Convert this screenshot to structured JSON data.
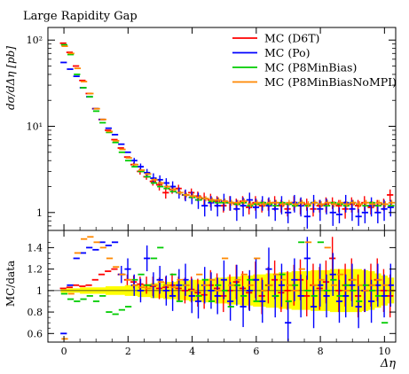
{
  "chart_data": [
    {
      "type": "scatter",
      "title": "Large Rapidity Gap",
      "ylabel": "dσ/dΔη [pb]",
      "yscale": "log",
      "ylim": [
        0.62,
        140
      ],
      "xlim": [
        -0.5,
        10.35
      ],
      "yticks": [
        {
          "value": 1,
          "label": "1"
        },
        {
          "value": 10,
          "label": "10¹"
        },
        {
          "value": 100,
          "label": "10²"
        }
      ],
      "legend_position": "top-right",
      "x_bins": [
        0.0,
        0.2,
        0.4,
        0.6,
        0.8,
        1.0,
        1.2,
        1.4,
        1.6,
        1.8,
        2.0,
        2.2,
        2.4,
        2.6,
        2.8,
        3.0,
        3.2,
        3.4,
        3.6,
        3.8,
        4.0,
        4.2,
        4.4,
        4.6,
        4.8,
        5.0,
        5.2,
        5.4,
        5.6,
        5.8,
        6.0,
        6.2,
        6.4,
        6.6,
        6.8,
        7.0,
        7.2,
        7.4,
        7.6,
        7.8,
        8.0,
        8.2,
        8.4,
        8.6,
        8.8,
        9.0,
        9.2,
        9.4,
        9.6,
        9.8,
        10.0,
        10.2
      ],
      "series": [
        {
          "name": "MC (D6T)",
          "color": "#ff0000",
          "values": [
            92,
            72,
            50,
            34,
            24,
            16,
            12,
            9,
            7,
            5.6,
            4.4,
            3.6,
            3.0,
            2.6,
            2.3,
            2.1,
            1.7,
            1.85,
            1.9,
            1.6,
            1.7,
            1.55,
            1.45,
            1.4,
            1.35,
            1.2,
            1.3,
            1.25,
            1.35,
            1.15,
            1.3,
            1.2,
            1.25,
            1.3,
            1.2,
            1.1,
            1.3,
            1.2,
            1.25,
            1.1,
            1.2,
            1.25,
            1.3,
            1.2,
            1.1,
            1.25,
            1.2,
            1.3,
            1.15,
            1.2,
            1.25,
            1.6
          ],
          "err": [
            0,
            0,
            0,
            0,
            0,
            0,
            0,
            0,
            0,
            0,
            0,
            0.2,
            0.25,
            0.2,
            0.25,
            0.3,
            0.25,
            0.2,
            0.2,
            0.2,
            0.2,
            0.2,
            0.25,
            0.25,
            0.2,
            0.2,
            0.25,
            0.2,
            0.2,
            0.2,
            0.25,
            0.2,
            0.2,
            0.25,
            0.2,
            0.2,
            0.25,
            0.25,
            0.2,
            0.2,
            0.2,
            0.25,
            0.2,
            0.2,
            0.25,
            0.25,
            0.2,
            0.25,
            0.2,
            0.2,
            0.2,
            0.25
          ]
        },
        {
          "name": "MC (Po)",
          "color": "#0000ff",
          "values": [
            55,
            46,
            38,
            28,
            22,
            16,
            12,
            9.5,
            8.0,
            6.2,
            5.0,
            4.0,
            3.4,
            2.9,
            2.5,
            2.4,
            2.2,
            2.0,
            1.7,
            1.6,
            1.5,
            1.4,
            1.2,
            1.3,
            1.2,
            1.35,
            1.3,
            1.1,
            1.2,
            1.4,
            1.15,
            1.3,
            1.2,
            1.1,
            1.25,
            1.0,
            1.3,
            1.2,
            0.9,
            1.3,
            1.1,
            1.2,
            1.0,
            0.95,
            1.3,
            1.1,
            0.9,
            1.0,
            1.2,
            1.0,
            1.1,
            1.15
          ],
          "err": [
            0,
            0,
            0,
            0,
            0,
            0,
            0,
            0,
            0,
            0,
            0,
            0.3,
            0.3,
            0.3,
            0.35,
            0.3,
            0.3,
            0.3,
            0.25,
            0.25,
            0.25,
            0.3,
            0.3,
            0.25,
            0.3,
            0.3,
            0.25,
            0.3,
            0.3,
            0.3,
            0.3,
            0.25,
            0.3,
            0.3,
            0.3,
            0.25,
            0.3,
            0.3,
            0.25,
            0.3,
            0.3,
            0.25,
            0.3,
            0.2,
            0.3,
            0.3,
            0.2,
            0.25,
            0.3,
            0.25,
            0.3,
            0.25
          ]
        },
        {
          "name": "MC (P8MinBias)",
          "color": "#00cc00",
          "values": [
            88,
            68,
            40,
            28,
            22,
            15,
            11,
            8.5,
            6.5,
            5.0,
            4.0,
            3.4,
            3.0,
            2.6,
            2.2,
            2.0,
            1.9,
            1.75,
            1.7,
            1.6,
            1.5,
            1.4,
            1.45,
            1.35,
            1.3,
            1.3,
            1.3,
            1.25,
            1.3,
            1.2,
            1.25,
            1.3,
            1.25,
            1.2,
            1.3,
            1.25,
            1.2,
            1.3,
            1.2,
            1.3,
            1.25,
            1.2,
            1.3,
            1.25,
            1.2,
            1.3,
            1.25,
            1.2,
            1.3,
            1.2,
            1.25,
            1.2
          ],
          "err": [
            0,
            0,
            0,
            0,
            0,
            0,
            0,
            0,
            0,
            0,
            0,
            0,
            0,
            0,
            0,
            0,
            0,
            0,
            0,
            0,
            0,
            0,
            0,
            0,
            0,
            0,
            0,
            0,
            0,
            0,
            0,
            0,
            0,
            0,
            0,
            0,
            0,
            0,
            0,
            0,
            0,
            0,
            0,
            0,
            0,
            0,
            0,
            0,
            0,
            0,
            0,
            0
          ]
        },
        {
          "name": "MC (P8MinBiasNoMPI)",
          "color": "#ff8800",
          "values": [
            85,
            70,
            47,
            33,
            24,
            16,
            12,
            8.7,
            6.8,
            5.4,
            4.3,
            3.6,
            3.1,
            2.8,
            2.4,
            2.2,
            2.0,
            1.85,
            1.7,
            1.6,
            1.55,
            1.5,
            1.45,
            1.4,
            1.4,
            1.35,
            1.3,
            1.3,
            1.35,
            1.25,
            1.3,
            1.25,
            1.3,
            1.3,
            1.25,
            1.3,
            1.25,
            1.3,
            1.25,
            1.3,
            1.25,
            1.3,
            1.25,
            1.3,
            1.25,
            1.3,
            1.25,
            1.3,
            1.25,
            1.3,
            1.25,
            1.3
          ],
          "err": [
            0,
            0,
            0,
            0,
            0,
            0,
            0,
            0,
            0,
            0,
            0,
            0.08,
            0.08,
            0.08,
            0.1,
            0.1,
            0.1,
            0.1,
            0.1,
            0.1,
            0.1,
            0.1,
            0.1,
            0.1,
            0.1,
            0.1,
            0.1,
            0.1,
            0.1,
            0.1,
            0.1,
            0.1,
            0.1,
            0.1,
            0.1,
            0.1,
            0.1,
            0.1,
            0.1,
            0.1,
            0.1,
            0.1,
            0.1,
            0.1,
            0.1,
            0.1,
            0.1,
            0.1,
            0.1,
            0.1,
            0.1,
            0.1
          ]
        }
      ]
    },
    {
      "type": "scatter",
      "xlabel": "Δη",
      "ylabel": "MC/data",
      "ylim": [
        0.52,
        1.56
      ],
      "xlim": [
        -0.5,
        10.35
      ],
      "yticks": [
        {
          "value": 0.6,
          "label": "0.6"
        },
        {
          "value": 0.8,
          "label": "0.8"
        },
        {
          "value": 1,
          "label": "1"
        },
        {
          "value": 1.2,
          "label": "1.2"
        },
        {
          "value": 1.4,
          "label": "1.4"
        }
      ],
      "xticks": [
        {
          "value": 0,
          "label": "0"
        },
        {
          "value": 2,
          "label": "2"
        },
        {
          "value": 4,
          "label": "4"
        },
        {
          "value": 6,
          "label": "6"
        },
        {
          "value": 8,
          "label": "8"
        },
        {
          "value": 10,
          "label": "10"
        }
      ],
      "reference_line": 1.0,
      "band_color": "#ffff00",
      "band_halfwidth": [
        0.02,
        0.02,
        0.02,
        0.03,
        0.03,
        0.03,
        0.03,
        0.04,
        0.04,
        0.04,
        0.05,
        0.05,
        0.06,
        0.06,
        0.07,
        0.07,
        0.08,
        0.08,
        0.09,
        0.09,
        0.1,
        0.1,
        0.11,
        0.11,
        0.12,
        0.12,
        0.13,
        0.13,
        0.14,
        0.14,
        0.15,
        0.15,
        0.16,
        0.16,
        0.17,
        0.17,
        0.18,
        0.18,
        0.18,
        0.19,
        0.19,
        0.19,
        0.2,
        0.2,
        0.2,
        0.2,
        0.2,
        0.19,
        0.18,
        0.16,
        0.14,
        0.12
      ],
      "series": [
        {
          "name": "MC (D6T)",
          "color": "#ff0000",
          "values": [
            1.02,
            1.03,
            1.05,
            1.04,
            1.05,
            1.1,
            1.15,
            1.18,
            1.2,
            1.15,
            1.1,
            1.08,
            1.06,
            1.05,
            1.04,
            1.02,
            1.03,
            1.05,
            1.02,
            1.0,
            1.01,
            0.98,
            0.96,
            1.05,
            1.02,
            0.95,
            1.0,
            1.08,
            1.02,
            0.98,
            1.1,
            0.95,
            1.05,
            1.1,
            0.98,
            1.0,
            1.05,
            1.1,
            0.95,
            1.05,
            1.02,
            1.08,
            1.3,
            1.0,
            1.05,
            1.1,
            0.95,
            1.0,
            1.05,
            1.1,
            1.0,
            0.95
          ],
          "err": [
            0,
            0,
            0,
            0,
            0,
            0,
            0,
            0,
            0,
            0,
            0.05,
            0.06,
            0.07,
            0.08,
            0.09,
            0.1,
            0.1,
            0.11,
            0.11,
            0.12,
            0.12,
            0.13,
            0.13,
            0.14,
            0.14,
            0.15,
            0.15,
            0.16,
            0.16,
            0.16,
            0.17,
            0.17,
            0.17,
            0.18,
            0.18,
            0.18,
            0.19,
            0.19,
            0.19,
            0.2,
            0.2,
            0.2,
            0.2,
            0.2,
            0.2,
            0.2,
            0.2,
            0.2,
            0.2,
            0.2,
            0.2,
            0.2
          ]
        },
        {
          "name": "MC (Po)",
          "color": "#0000ff",
          "values": [
            0.6,
            1.05,
            1.3,
            1.35,
            1.4,
            1.38,
            1.45,
            1.42,
            1.45,
            1.15,
            1.2,
            1.05,
            1.0,
            1.3,
            1.05,
            1.1,
            1.0,
            0.95,
            1.05,
            1.1,
            0.95,
            0.9,
            1.05,
            1.0,
            0.95,
            1.1,
            0.9,
            1.05,
            0.85,
            1.0,
            1.1,
            0.9,
            1.2,
            0.95,
            1.05,
            0.7,
            1.1,
            0.95,
            1.3,
            0.85,
            1.05,
            0.95,
            1.15,
            0.9,
            0.95,
            1.05,
            0.85,
            1.0,
            0.9,
            1.05,
            0.95,
            1.05
          ],
          "err": [
            0,
            0,
            0,
            0,
            0,
            0,
            0,
            0,
            0,
            0.08,
            0.1,
            0.1,
            0.11,
            0.12,
            0.12,
            0.13,
            0.14,
            0.14,
            0.15,
            0.15,
            0.16,
            0.16,
            0.17,
            0.17,
            0.17,
            0.18,
            0.18,
            0.19,
            0.19,
            0.19,
            0.2,
            0.2,
            0.2,
            0.2,
            0.2,
            0.2,
            0.2,
            0.2,
            0.2,
            0.2,
            0.2,
            0.2,
            0.2,
            0.2,
            0.2,
            0.2,
            0.2,
            0.2,
            0.2,
            0.2,
            0.2,
            0.2
          ]
        },
        {
          "name": "MC (P8MinBias)",
          "color": "#00cc00",
          "values": [
            0.97,
            0.92,
            0.9,
            0.92,
            0.95,
            0.9,
            0.95,
            0.8,
            0.78,
            0.82,
            0.85,
            1.1,
            1.15,
            1.05,
            1.3,
            1.4,
            1.05,
            1.15,
            0.9,
            1.05,
            1.0,
            0.95,
            1.1,
            0.9,
            1.05,
            1.0,
            0.85,
            1.05,
            0.95,
            1.1,
            0.9,
            1.0,
            1.05,
            0.95,
            1.15,
            0.9,
            1.05,
            1.45,
            1.0,
            0.95,
            1.45,
            1.0,
            1.1,
            0.95,
            1.05,
            1.0,
            0.9,
            1.05,
            1.0,
            0.95,
            0.7,
            1.0
          ],
          "err": [
            0,
            0,
            0,
            0,
            0,
            0,
            0,
            0,
            0,
            0,
            0,
            0,
            0,
            0,
            0,
            0,
            0,
            0,
            0,
            0,
            0,
            0,
            0,
            0,
            0,
            0,
            0,
            0,
            0,
            0,
            0,
            0,
            0,
            0,
            0,
            0,
            0,
            0,
            0,
            0,
            0,
            0,
            0,
            0,
            0,
            0,
            0,
            0,
            0,
            0,
            0,
            0
          ]
        },
        {
          "name": "MC (P8MinBiasNoMPI)",
          "color": "#ff8800",
          "values": [
            0.55,
            0.97,
            1.35,
            1.48,
            1.5,
            1.45,
            1.4,
            1.3,
            1.22,
            1.15,
            1.1,
            1.05,
            1.03,
            1.02,
            1.05,
            1.08,
            1.05,
            1.03,
            1.1,
            1.05,
            1.0,
            1.15,
            1.05,
            1.1,
            1.0,
            1.3,
            1.05,
            1.1,
            1.15,
            1.05,
            1.3,
            1.0,
            1.05,
            1.15,
            1.1,
            1.05,
            1.0,
            1.2,
            1.45,
            1.05,
            1.1,
            1.4,
            1.05,
            1.15,
            1.0,
            1.1,
            1.05,
            1.0,
            1.05,
            1.1,
            1.05,
            1.0
          ],
          "err": [
            0,
            0,
            0,
            0,
            0,
            0,
            0,
            0,
            0,
            0,
            0,
            0,
            0,
            0,
            0,
            0,
            0,
            0,
            0,
            0,
            0,
            0,
            0,
            0,
            0,
            0,
            0,
            0,
            0,
            0,
            0,
            0,
            0,
            0,
            0,
            0,
            0,
            0,
            0,
            0,
            0,
            0,
            0,
            0,
            0,
            0,
            0,
            0,
            0,
            0,
            0,
            0
          ]
        }
      ]
    }
  ]
}
